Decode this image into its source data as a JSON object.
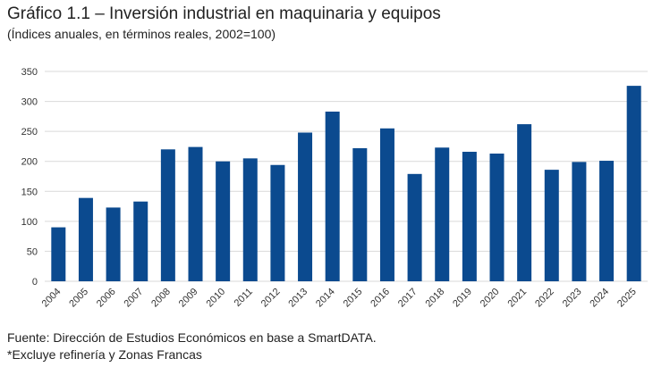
{
  "title": "Gráfico 1.1 – Inversión industrial en maquinaria y equipos",
  "subtitle": "(Índices anuales, en términos reales, 2002=100)",
  "footer": {
    "source": "Fuente: Dirección de Estudios Económicos en base a SmartDATA.",
    "note": "*Excluye refinería y Zonas Francas"
  },
  "colors": {
    "bar": "#0b4a8f",
    "grid": "#d9d9d9"
  },
  "chart_data": {
    "type": "bar",
    "title": "Gráfico 1.1 – Inversión industrial en maquinaria y equipos",
    "subtitle": "(Índices anuales, en términos reales, 2002=100)",
    "xlabel": "",
    "ylabel": "",
    "ylim": [
      0,
      350
    ],
    "yticks": [
      0,
      50,
      100,
      150,
      200,
      250,
      300,
      350
    ],
    "grid": true,
    "categories": [
      "2004",
      "2005",
      "2006",
      "2007",
      "2008",
      "2009",
      "2010",
      "2011",
      "2012",
      "2013",
      "2014",
      "2015",
      "2016",
      "2017",
      "2018",
      "2019",
      "2020",
      "2021",
      "2022",
      "2023",
      "2024",
      "2025"
    ],
    "values": [
      90,
      139,
      123,
      133,
      220,
      224,
      200,
      205,
      194,
      248,
      283,
      222,
      255,
      179,
      223,
      216,
      213,
      262,
      186,
      199,
      201,
      326
    ]
  }
}
